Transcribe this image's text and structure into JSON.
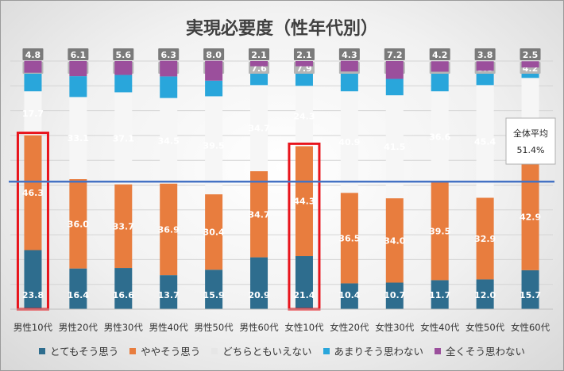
{
  "chart_data": {
    "type": "bar",
    "stacked": true,
    "title": "実現必要度（性年代別）",
    "categories": [
      "男性10代",
      "男性20代",
      "男性30代",
      "男性40代",
      "男性50代",
      "男性60代",
      "女性10代",
      "女性20代",
      "女性30代",
      "女性40代",
      "女性50代",
      "女性60代"
    ],
    "series": [
      {
        "name": "とてもそう思う",
        "color": "#2e6d8e",
        "values": [
          23.8,
          16.4,
          16.6,
          13.7,
          15.9,
          20.9,
          21.4,
          10.4,
          10.7,
          11.7,
          12.0,
          15.7
        ]
      },
      {
        "name": "ややそう思う",
        "color": "#e87d3e",
        "values": [
          46.3,
          36.0,
          33.7,
          36.9,
          30.4,
          34.7,
          44.3,
          36.5,
          34.0,
          39.5,
          32.9,
          42.9
        ]
      },
      {
        "name": "どちらともいえない",
        "color": "#f6f6f6",
        "values": [
          17.7,
          33.1,
          37.1,
          34.5,
          39.5,
          34.7,
          24.3,
          40.9,
          41.5,
          36.6,
          45.4,
          34.6
        ]
      },
      {
        "name": "あまりそう思わない",
        "color": "#29a6db",
        "values": [
          7.5,
          8.4,
          7.0,
          8.7,
          6.3,
          7.6,
          7.9,
          8.0,
          6.6,
          7.9,
          5.8,
          4.2
        ]
      },
      {
        "name": "全くそう思わない",
        "color": "#9b4f9c",
        "values": [
          4.8,
          6.1,
          5.6,
          6.3,
          8.0,
          2.1,
          2.1,
          4.3,
          7.2,
          4.2,
          3.8,
          2.5
        ]
      }
    ],
    "average": {
      "label": "全体平均",
      "value_text": "51.4%",
      "value": 51.4,
      "color": "#4472c4"
    },
    "highlighted_categories": [
      "男性10代",
      "女性10代"
    ],
    "highlight_color": "#e8141c",
    "legend_position": "bottom",
    "grid": true
  }
}
